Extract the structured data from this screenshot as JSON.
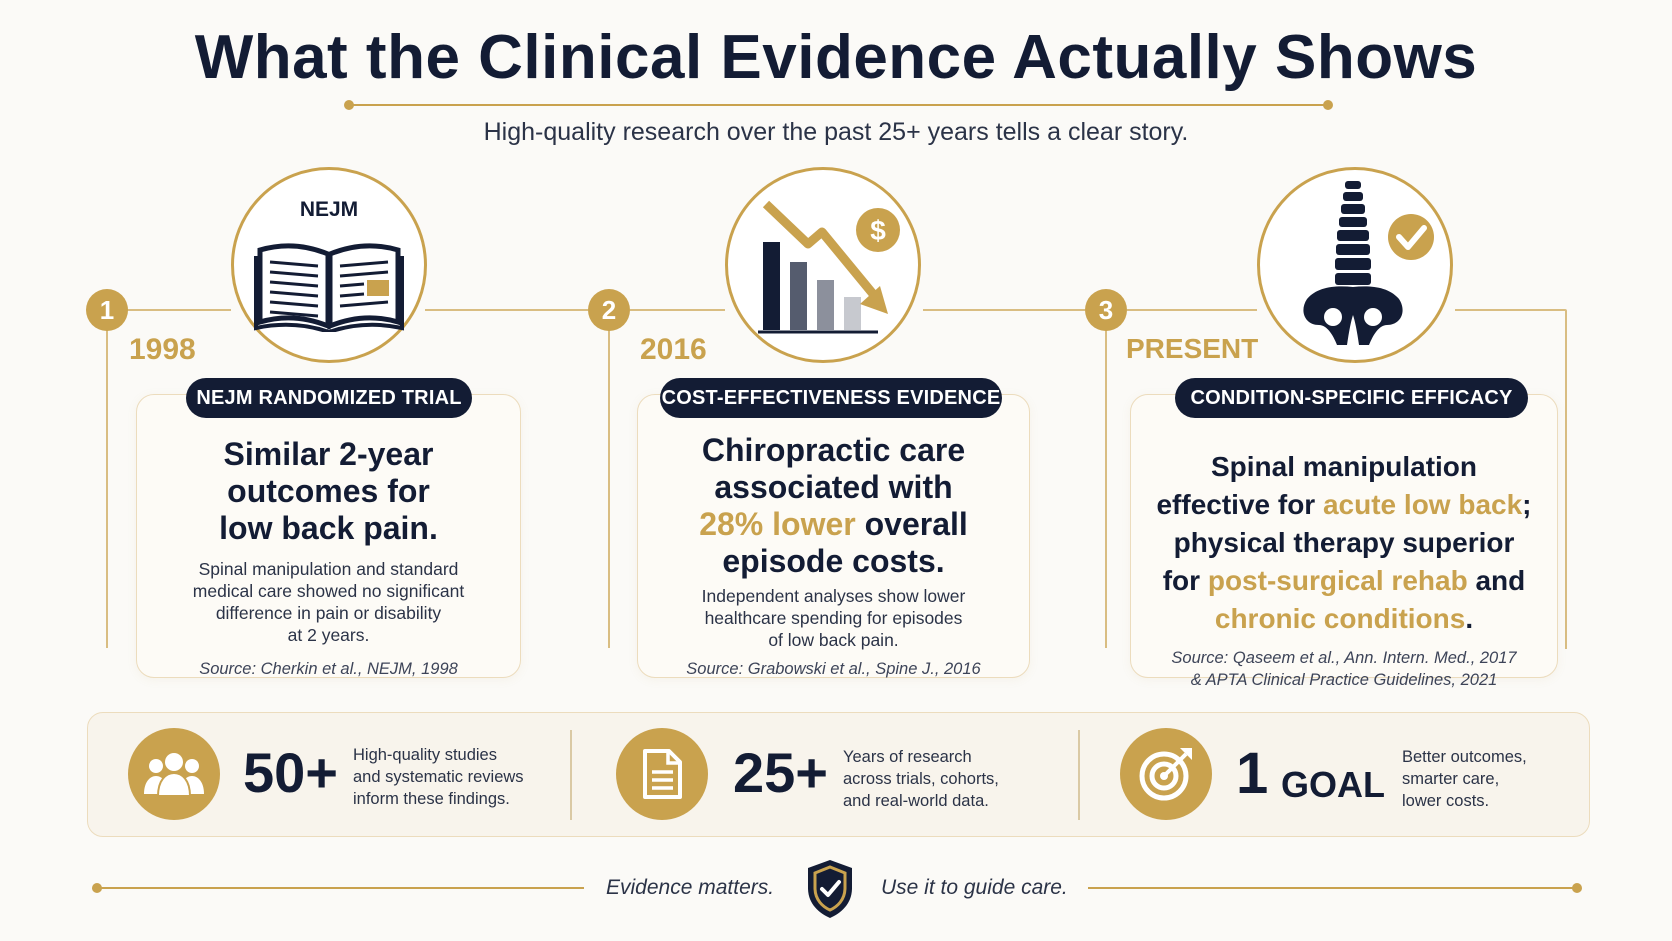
{
  "title": "What the Clinical Evidence Actually Shows",
  "subtitle": "High-quality research over the past 25+ years tells a clear story.",
  "colors": {
    "navy": "#131c34",
    "gold": "#c9a24e",
    "background": "#fbfaf7"
  },
  "steps": [
    {
      "number": "1",
      "year": "1998",
      "icon": "open-book-icon",
      "icon_label": "NEJM",
      "pill": "NEJM RANDOMIZED TRIAL",
      "headline": [
        "Similar 2-year",
        "outcomes for",
        "low back pain."
      ],
      "body": [
        "Spinal manipulation and standard",
        "medical care showed no significant",
        "difference in pain or disability",
        "at 2 years."
      ],
      "source": [
        "Source: Cherkin et al., NEJM, 1998"
      ]
    },
    {
      "number": "2",
      "year": "2016",
      "icon": "declining-cost-chart-icon",
      "pill": "COST-EFFECTIVENESS EVIDENCE",
      "headline_l1": "Chiropractic care",
      "headline_l2": "associated with",
      "headline_l3_gold": "28% lower",
      "headline_l3_rest": " overall",
      "headline_l4": "episode costs.",
      "body": [
        "Independent analyses show lower",
        "healthcare spending for episodes",
        "of low back pain."
      ],
      "source": [
        "Source: Grabowski et al., Spine J., 2016"
      ]
    },
    {
      "number": "3",
      "year": "PRESENT",
      "icon": "spine-check-icon",
      "pill": "CONDITION-SPECIFIC EFFICACY",
      "l1": "Spinal manipulation",
      "l2_a": "effective for ",
      "l2_gold": "acute low back",
      "l2_b": ";",
      "l3": "physical therapy superior",
      "l4_a": "for ",
      "l4_gold": "post-surgical rehab",
      "l4_b": " and",
      "l5_gold": "chronic conditions",
      "l5_b": ".",
      "source": [
        "Source: Qaseem et al., Ann. Intern. Med., 2017",
        "& APTA Clinical Practice Guidelines, 2021"
      ]
    }
  ],
  "stats": [
    {
      "icon": "people-icon",
      "value": "50+",
      "desc": [
        "High-quality studies",
        "and systematic reviews",
        "inform these findings."
      ]
    },
    {
      "icon": "document-icon",
      "value": "25+",
      "desc": [
        "Years of research",
        "across trials, cohorts,",
        "and real-world data."
      ]
    },
    {
      "icon": "target-icon",
      "value_num": "1",
      "value_word": "GOAL",
      "desc": [
        "Better outcomes,",
        "smarter care,",
        "lower costs."
      ]
    }
  ],
  "footer": {
    "left": "Evidence matters.",
    "right": "Use it to guide care.",
    "icon": "shield-check-icon"
  }
}
